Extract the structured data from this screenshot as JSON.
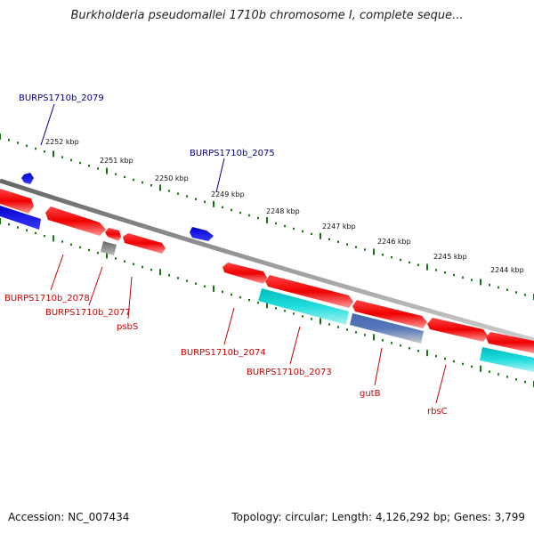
{
  "title": "Burkholderia pseudomallei 1710b chromosome I, complete seque...",
  "accession": "Accession: NC_007434",
  "summary": "Topology: circular; Length: 4,126,292 bp; Genes: 3,799",
  "colors": {
    "forward_gene": "#ee1111",
    "reverse_gene": "#00cccc",
    "blue_feature": "#1515dd",
    "pseudo_gene": "#555555",
    "backbone": "#888888",
    "tick": "#117711",
    "label_red": "#d00000",
    "label_blue": "#00008b"
  },
  "scale": [
    {
      "label": "2252 kbp"
    },
    {
      "label": "2251 kbp"
    },
    {
      "label": "2250 kbp"
    },
    {
      "label": "2249 kbp"
    },
    {
      "label": "2248 kbp"
    },
    {
      "label": "2247 kbp"
    },
    {
      "label": "2246 kbp"
    },
    {
      "label": "2245 kbp"
    },
    {
      "label": "2244 kbp"
    }
  ],
  "gene_labels": [
    {
      "name": "BURPS1710b_2079"
    },
    {
      "name": "BURPS1710b_2075"
    },
    {
      "name": "BURPS1710b_2078"
    },
    {
      "name": "BURPS1710b_2077"
    },
    {
      "name": "psbS"
    },
    {
      "name": "BURPS1710b_2074"
    },
    {
      "name": "BURPS1710b_2073"
    },
    {
      "name": "gutB"
    },
    {
      "name": "rbsC"
    }
  ]
}
